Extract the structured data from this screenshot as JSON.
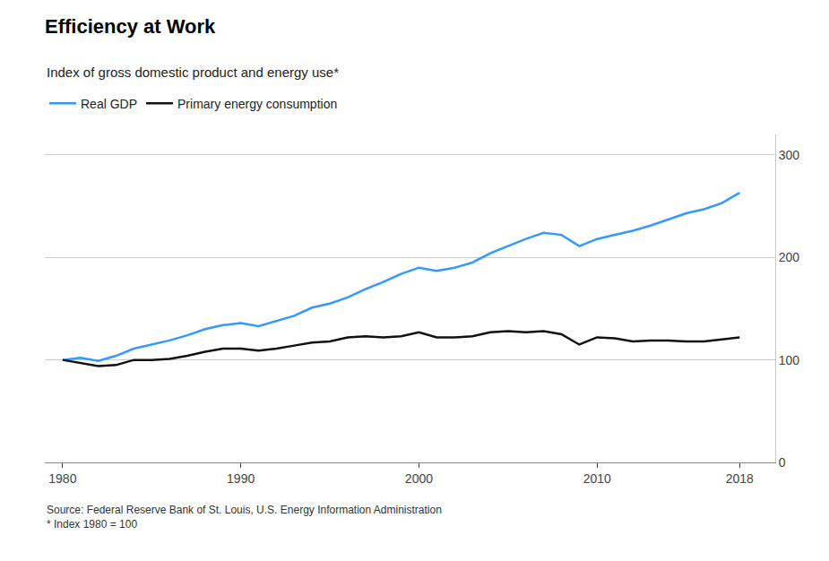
{
  "chart_data": {
    "type": "line",
    "title": "Efficiency at Work",
    "subtitle": "Index of gross domestic product and energy use*",
    "annotations": [
      "Source: Federal Reserve Bank of St. Louis, U.S. Energy Information Administration\n* Index 1980 = 100"
    ],
    "x": [
      1980,
      1981,
      1982,
      1983,
      1984,
      1985,
      1986,
      1987,
      1988,
      1989,
      1990,
      1991,
      1992,
      1993,
      1994,
      1995,
      1996,
      1997,
      1998,
      1999,
      2000,
      2001,
      2002,
      2003,
      2004,
      2005,
      2006,
      2007,
      2008,
      2009,
      2010,
      2011,
      2012,
      2013,
      2014,
      2015,
      2016,
      2017,
      2018
    ],
    "series": [
      {
        "name": "Real GDP",
        "color": "#3399FF",
        "values": [
          100,
          102,
          99,
          104,
          111,
          115,
          119,
          124,
          130,
          134,
          136,
          133,
          138,
          143,
          151,
          155,
          161,
          169,
          176,
          184,
          190,
          187,
          190,
          195,
          204,
          211,
          218,
          224,
          222,
          211,
          218,
          222,
          226,
          231,
          237,
          243,
          247,
          253,
          263
        ]
      },
      {
        "name": "Primary energy consumption",
        "color": "#111111",
        "values": [
          100,
          97,
          94,
          95,
          100,
          100,
          101,
          104,
          108,
          111,
          111,
          109,
          111,
          114,
          117,
          118,
          122,
          123,
          122,
          123,
          127,
          122,
          122,
          123,
          127,
          128,
          127,
          128,
          125,
          115,
          122,
          121,
          118,
          119,
          119,
          118,
          118,
          120,
          122
        ]
      }
    ],
    "xlim": [
      1979,
      2020
    ],
    "xticks": [
      1980,
      1990,
      2000,
      2010,
      2018
    ],
    "ylim": [
      0,
      320
    ],
    "yticks": [
      0,
      100,
      200,
      300
    ],
    "grid": true,
    "legend": "top left"
  }
}
